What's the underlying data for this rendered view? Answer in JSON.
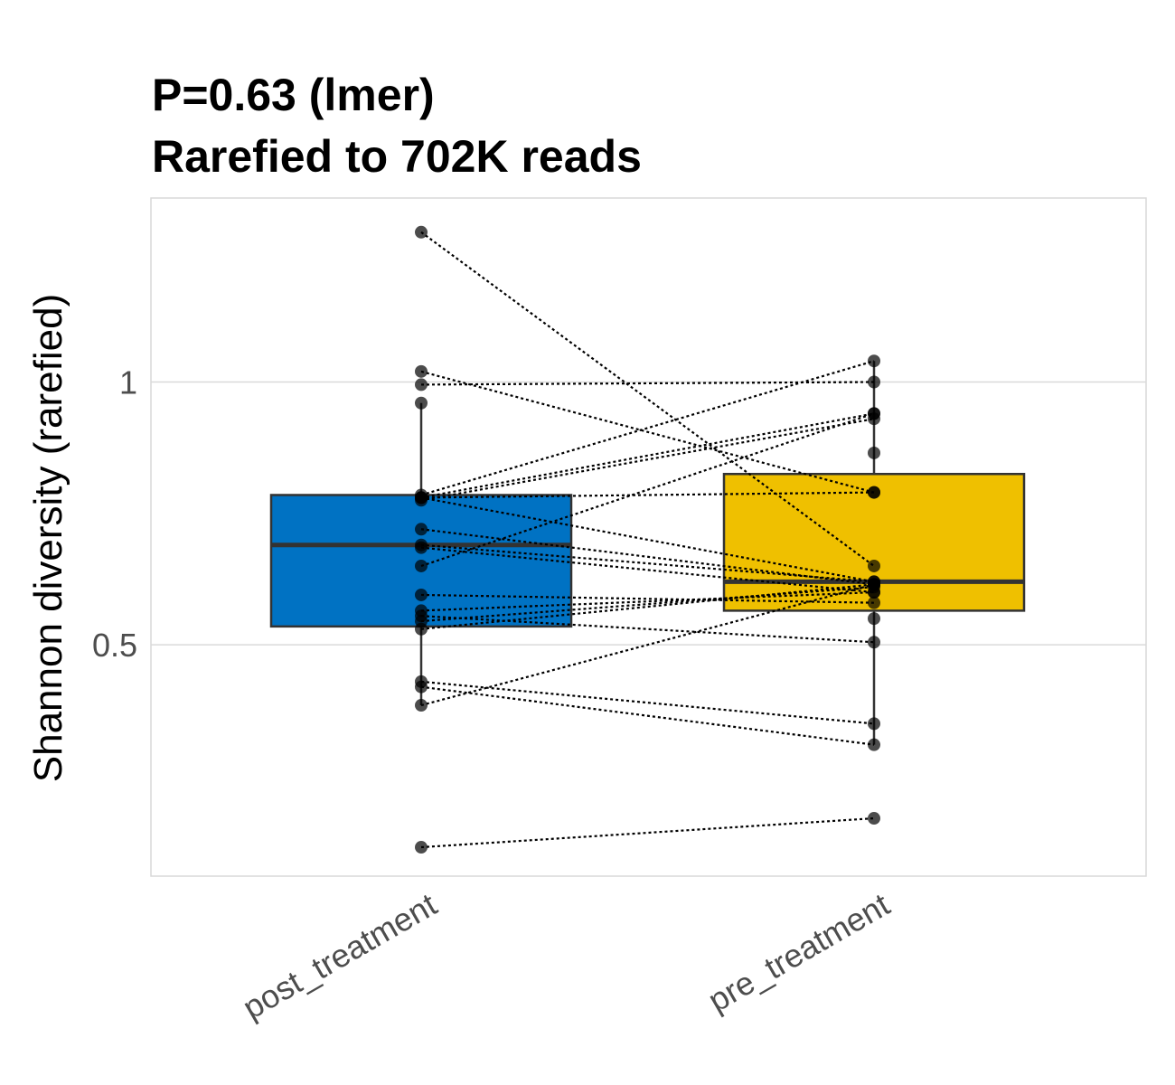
{
  "chart_data": {
    "type": "box",
    "title_lines": [
      "P=0.63 (lmer)",
      "Rarefied to 702K reads"
    ],
    "xlabel": "",
    "ylabel": "Shannon diversity (rarefied)",
    "ylim": [
      0.06,
      1.35
    ],
    "yticks": [
      0.5,
      1.0
    ],
    "ytick_labels": [
      "0.5",
      "1"
    ],
    "grid": "horizontal",
    "legend": "none",
    "categories": [
      "post_treatment",
      "pre_treatment"
    ],
    "box_colors": [
      "#0072c3",
      "#efc000"
    ],
    "boxes": [
      {
        "category": "post_treatment",
        "whisker_low": 0.385,
        "q1": 0.535,
        "median": 0.69,
        "q3": 0.785,
        "whisker_high": 0.96
      },
      {
        "category": "pre_treatment",
        "whisker_low": 0.31,
        "q1": 0.565,
        "median": 0.62,
        "q3": 0.825,
        "whisker_high": 1.04
      }
    ],
    "pairs": [
      [
        1.285,
        0.65
      ],
      [
        1.02,
        0.79
      ],
      [
        0.995,
        1.0
      ],
      [
        0.785,
        1.04
      ],
      [
        0.78,
        0.94
      ],
      [
        0.775,
        0.93
      ],
      [
        0.78,
        0.79
      ],
      [
        0.78,
        0.62
      ],
      [
        0.72,
        0.615
      ],
      [
        0.69,
        0.62
      ],
      [
        0.685,
        0.6
      ],
      [
        0.65,
        0.94
      ],
      [
        0.595,
        0.58
      ],
      [
        0.565,
        0.6
      ],
      [
        0.555,
        0.505
      ],
      [
        0.545,
        0.61
      ],
      [
        0.53,
        0.615
      ],
      [
        0.43,
        0.35
      ],
      [
        0.42,
        0.31
      ],
      [
        0.385,
        0.615
      ],
      [
        0.115,
        0.17
      ]
    ],
    "extra_points": [
      {
        "category": "post_treatment",
        "y": 0.96
      },
      {
        "category": "pre_treatment",
        "y": 0.865
      },
      {
        "category": "pre_treatment",
        "y": 0.55
      }
    ]
  }
}
